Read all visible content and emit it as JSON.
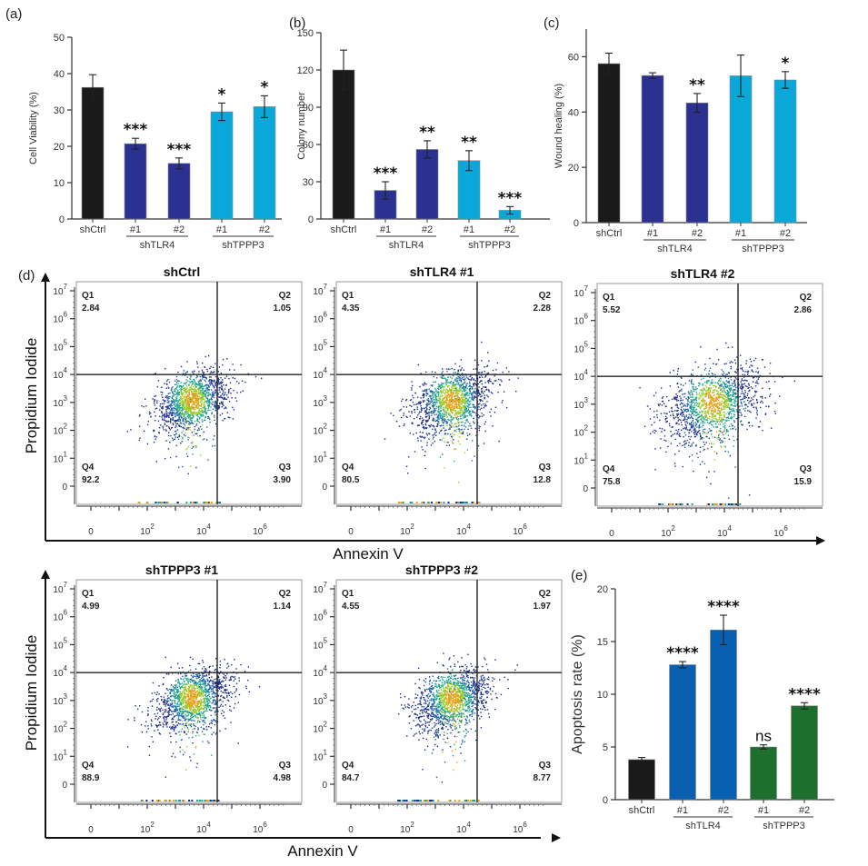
{
  "chart_data": [
    {
      "id": "a",
      "panel_label": "(a)",
      "type": "bar",
      "title": "",
      "ylabel": "Cell Viability (%)",
      "xlabel": "",
      "ylim": [
        0,
        50
      ],
      "yticks": [
        0,
        10,
        20,
        30,
        40,
        50
      ],
      "categories": [
        "shCtrl",
        "#1",
        "#2",
        "#1",
        "#2"
      ],
      "groups": [
        {
          "label": "shTLR4",
          "members": [
            1,
            2
          ]
        },
        {
          "label": "shTPPP3",
          "members": [
            3,
            4
          ]
        }
      ],
      "values": [
        36.2,
        20.7,
        15.3,
        29.5,
        30.9
      ],
      "errors": [
        3.5,
        1.5,
        1.5,
        2.4,
        3.0
      ],
      "significance": [
        "",
        "***",
        "***",
        "*",
        "*"
      ],
      "colors": [
        "#1a1a1a",
        "#2b3190",
        "#2b3190",
        "#0aa7d9",
        "#0aa7d9"
      ]
    },
    {
      "id": "b",
      "panel_label": "(b)",
      "type": "bar",
      "title": "",
      "ylabel": "Colony number",
      "xlabel": "",
      "ylim": [
        0,
        150
      ],
      "yticks": [
        0,
        30,
        60,
        90,
        120,
        150
      ],
      "categories": [
        "shCtrl",
        "#1",
        "#2",
        "#1",
        "#2"
      ],
      "groups": [
        {
          "label": "shTLR4",
          "members": [
            1,
            2
          ]
        },
        {
          "label": "shTPPP3",
          "members": [
            3,
            4
          ]
        }
      ],
      "values": [
        120,
        23,
        56,
        47,
        7
      ],
      "errors": [
        16,
        7,
        7,
        8,
        3
      ],
      "significance": [
        "",
        "***",
        "**",
        "**",
        "***"
      ],
      "colors": [
        "#1a1a1a",
        "#2b3190",
        "#2b3190",
        "#0aa7d9",
        "#0aa7d9"
      ]
    },
    {
      "id": "c",
      "panel_label": "(c)",
      "type": "bar",
      "title": "",
      "ylabel": "Wound healing (%)",
      "xlabel": "",
      "ylim": [
        0,
        70
      ],
      "yticks": [
        0,
        20,
        40,
        60
      ],
      "categories": [
        "shCtrl",
        "#1",
        "#2",
        "#1",
        "#2"
      ],
      "groups": [
        {
          "label": "shTLR4",
          "members": [
            1,
            2
          ]
        },
        {
          "label": "shTPPP3",
          "members": [
            3,
            4
          ]
        }
      ],
      "values": [
        57.5,
        53.2,
        43.3,
        53.1,
        51.6
      ],
      "errors": [
        3.8,
        1.0,
        3.4,
        7.5,
        3.0
      ],
      "significance": [
        "",
        "",
        "**",
        "",
        "*"
      ],
      "colors": [
        "#1a1a1a",
        "#2b3190",
        "#2b3190",
        "#0aa7d9",
        "#0aa7d9"
      ]
    },
    {
      "id": "e",
      "panel_label": "(e)",
      "type": "bar",
      "title": "",
      "ylabel": "Apoptosis rate (%)",
      "xlabel": "",
      "ylim": [
        0,
        20
      ],
      "yticks": [
        0,
        5,
        10,
        15,
        20
      ],
      "categories": [
        "shCtrl",
        "#1",
        "#2",
        "#1",
        "#2"
      ],
      "groups": [
        {
          "label": "shTLR4",
          "members": [
            1,
            2
          ]
        },
        {
          "label": "shTPPP3",
          "members": [
            3,
            4
          ]
        }
      ],
      "values": [
        3.8,
        12.8,
        16.1,
        5.0,
        8.9
      ],
      "errors": [
        0.2,
        0.3,
        1.4,
        0.2,
        0.3
      ],
      "significance": [
        "",
        "****",
        "****",
        "ns",
        "****"
      ],
      "colors": [
        "#1a1a1a",
        "#0a60b0",
        "#0a60b0",
        "#1d6f2d",
        "#1d6f2d"
      ]
    }
  ],
  "flow_cytometry": {
    "panel_label": "(d)",
    "type": "scatter",
    "xlabel": "Annexin V",
    "ylabel": "Propidium Iodide",
    "xticks": [
      "0",
      "10^2",
      "10^4",
      "10^6"
    ],
    "yticks": [
      "10^7",
      "10^6",
      "10^5",
      "10^4",
      "10^3",
      "10^2",
      "10^1",
      "0"
    ],
    "plots": [
      {
        "title": "shCtrl",
        "Q1": {
          "label": "Q1",
          "value": "2.84"
        },
        "Q2": {
          "label": "Q2",
          "value": "1.05"
        },
        "Q3": {
          "label": "Q3",
          "value": "3.90"
        },
        "Q4": {
          "label": "Q4",
          "value": "92.2"
        },
        "spread": 1.0
      },
      {
        "title": "shTLR4 #1",
        "Q1": {
          "label": "Q1",
          "value": "4.35"
        },
        "Q2": {
          "label": "Q2",
          "value": "2.28"
        },
        "Q3": {
          "label": "Q3",
          "value": "12.8"
        },
        "Q4": {
          "label": "Q4",
          "value": "80.5"
        },
        "spread": 1.05
      },
      {
        "title": "shTLR4 #2",
        "Q1": {
          "label": "Q1",
          "value": "5.52"
        },
        "Q2": {
          "label": "Q2",
          "value": "2.86"
        },
        "Q3": {
          "label": "Q3",
          "value": "15.9"
        },
        "Q4": {
          "label": "Q4",
          "value": "75.8"
        },
        "spread": 1.25
      },
      {
        "title": "shTPPP3 #1",
        "Q1": {
          "label": "Q1",
          "value": "4.99"
        },
        "Q2": {
          "label": "Q2",
          "value": "1.14"
        },
        "Q3": {
          "label": "Q3",
          "value": "4.98"
        },
        "Q4": {
          "label": "Q4",
          "value": "88.9"
        },
        "spread": 1.0
      },
      {
        "title": "shTPPP3 #2",
        "Q1": {
          "label": "Q1",
          "value": "4.55"
        },
        "Q2": {
          "label": "Q2",
          "value": "1.97"
        },
        "Q3": {
          "label": "Q3",
          "value": "8.77"
        },
        "Q4": {
          "label": "Q4",
          "value": "84.7"
        },
        "spread": 1.0
      }
    ]
  }
}
